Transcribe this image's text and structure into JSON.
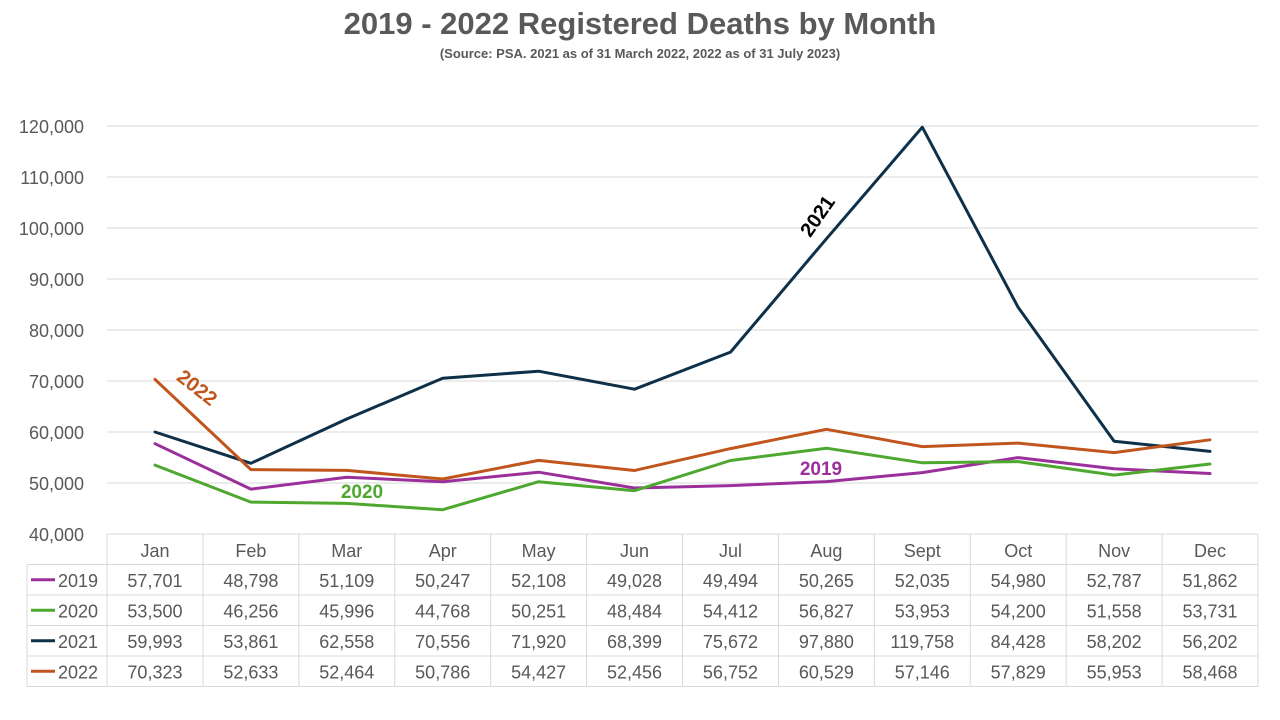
{
  "chart_data": {
    "type": "line",
    "title": "2019 - 2022 Registered Deaths by Month",
    "subtitle": "(Source: PSA.  2021 as of 31 March 2022, 2022 as of 31 July 2023)",
    "categories": [
      "Jan",
      "Feb",
      "Mar",
      "Apr",
      "May",
      "Jun",
      "Jul",
      "Aug",
      "Sept",
      "Oct",
      "Nov",
      "Dec"
    ],
    "ylim": [
      40000,
      120000
    ],
    "yticks": [
      40000,
      50000,
      60000,
      70000,
      80000,
      90000,
      100000,
      110000,
      120000
    ],
    "ytick_labels": [
      "40,000",
      "50,000",
      "60,000",
      "70,000",
      "80,000",
      "90,000",
      "100,000",
      "110,000",
      "120,000"
    ],
    "grid": true,
    "series": [
      {
        "name": "2019",
        "color": "#9B309B",
        "values": [
          57701,
          48798,
          51109,
          50247,
          52108,
          49028,
          49494,
          50265,
          52035,
          54980,
          52787,
          51862
        ],
        "labels": [
          "57,701",
          "48,798",
          "51,109",
          "50,247",
          "52,108",
          "49,028",
          "49,494",
          "50,265",
          "52,035",
          "54,980",
          "52,787",
          "51,862"
        ]
      },
      {
        "name": "2020",
        "color": "#4EA72E",
        "values": [
          53500,
          46256,
          45996,
          44768,
          50251,
          48484,
          54412,
          56827,
          53953,
          54200,
          51558,
          53731
        ],
        "labels": [
          "53,500",
          "46,256",
          "45,996",
          "44,768",
          "50,251",
          "48,484",
          "54,412",
          "56,827",
          "53,953",
          "54,200",
          "51,558",
          "53,731"
        ]
      },
      {
        "name": "2021",
        "color": "#0E3048",
        "values": [
          59993,
          53861,
          62558,
          70556,
          71920,
          68399,
          75672,
          97880,
          119758,
          84428,
          58202,
          56202
        ],
        "labels": [
          "59,993",
          "53,861",
          "62,558",
          "70,556",
          "71,920",
          "68,399",
          "75,672",
          "97,880",
          "119,758",
          "84,428",
          "58,202",
          "56,202"
        ]
      },
      {
        "name": "2022",
        "color": "#C0561D",
        "values": [
          70323,
          52633,
          52464,
          50786,
          54427,
          52456,
          56752,
          60529,
          57146,
          57829,
          55953,
          58468
        ],
        "labels": [
          "70,323",
          "52,633",
          "52,464",
          "50,786",
          "54,427",
          "52,456",
          "56,752",
          "60,529",
          "57,146",
          "57,829",
          "55,953",
          "58,468"
        ]
      }
    ],
    "annotations": [
      {
        "text": "2022",
        "series": "2022",
        "color": "#C0561D"
      },
      {
        "text": "2020",
        "series": "2020",
        "color": "#4EA72E"
      },
      {
        "text": "2019",
        "series": "2019",
        "color": "#9B309B"
      },
      {
        "text": "2021",
        "series": "2021",
        "color": "#000000"
      }
    ]
  }
}
